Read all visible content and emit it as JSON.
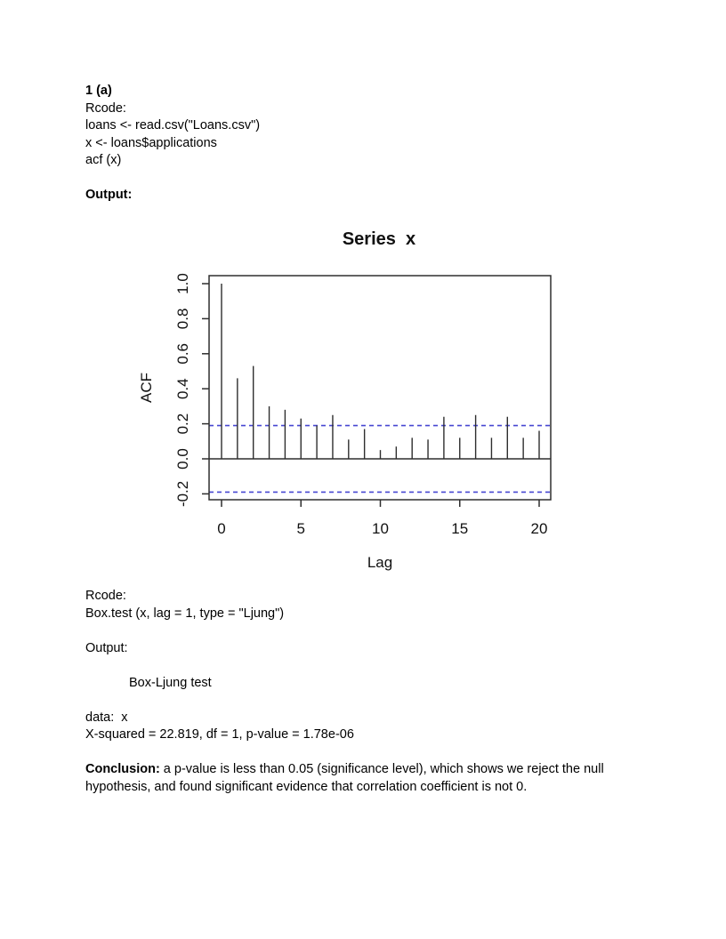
{
  "section_a": {
    "heading": "1 (a)",
    "rcode_label": "Rcode:",
    "code_lines": [
      "loans <- read.csv(\"Loans.csv\")",
      "x <- loans$applications",
      "acf (x)"
    ],
    "output_label": "Output:"
  },
  "chart_data": {
    "type": "bar",
    "title": "Series  x",
    "xlabel": "Lag",
    "ylabel": "ACF",
    "x": [
      0,
      1,
      2,
      3,
      4,
      5,
      6,
      7,
      8,
      9,
      10,
      11,
      12,
      13,
      14,
      15,
      16,
      17,
      18,
      19,
      20
    ],
    "values": [
      1.0,
      0.46,
      0.53,
      0.3,
      0.28,
      0.23,
      0.19,
      0.25,
      0.11,
      0.17,
      0.05,
      0.07,
      0.12,
      0.11,
      0.24,
      0.12,
      0.25,
      0.12,
      0.24,
      0.12,
      0.16
    ],
    "conf_bound": 0.19,
    "xticks": [
      0,
      5,
      10,
      15,
      20
    ],
    "yticks": [
      1.0,
      0.8,
      0.6,
      0.4,
      0.2,
      0.0,
      -0.2
    ],
    "ylim": [
      -0.24,
      1.05
    ],
    "xlim": [
      -0.9,
      20.7
    ],
    "grid": false,
    "bar_color": "#2e2e2e",
    "conf_line_color": "#4747d1",
    "axis_color": "#2e2e2e"
  },
  "section_test": {
    "rcode_label": "Rcode:",
    "code_line": "Box.test (x, lag = 1, type = \"Ljung\")",
    "output_label": "Output:",
    "test_title": "Box-Ljung test",
    "data_line": "data:  x",
    "stats_line": "X-squared = 22.819, df = 1, p-value = 1.78e-06",
    "conclusion_label": "Conclusion:",
    "conclusion_line1_rest": " a p-value is less than 0.05 (significance level), which shows we reject the null",
    "conclusion_line2": "hypothesis, and found significant evidence that correlation coefficient is not 0."
  }
}
